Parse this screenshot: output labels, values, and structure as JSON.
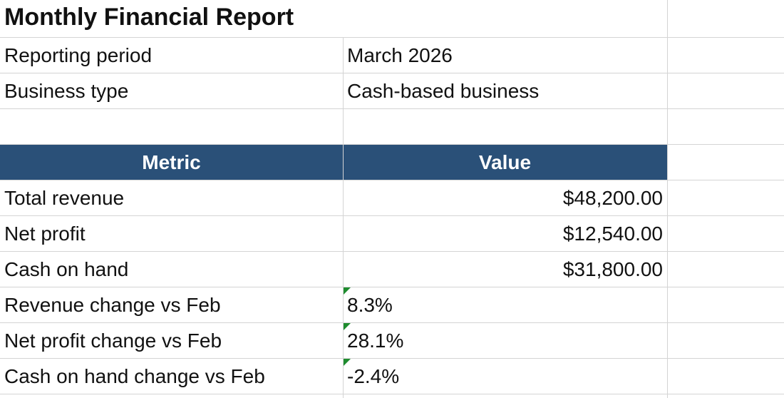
{
  "title": "Monthly Financial Report",
  "info": [
    [
      "Reporting period",
      "March 2026"
    ],
    [
      "Business type",
      "Cash-based business"
    ]
  ],
  "table": {
    "header": [
      "Metric",
      "Value"
    ],
    "rows": [
      [
        "Total revenue",
        "$48,200.00"
      ],
      [
        "Net profit",
        "$12,540.00"
      ],
      [
        "Cash on hand",
        "$31,800.00"
      ],
      [
        "Revenue change vs Feb",
        "8.3%"
      ],
      [
        "Net profit change vs Feb",
        "28.1%"
      ],
      [
        "Cash on hand change vs Feb",
        "-2.4%"
      ]
    ]
  }
}
